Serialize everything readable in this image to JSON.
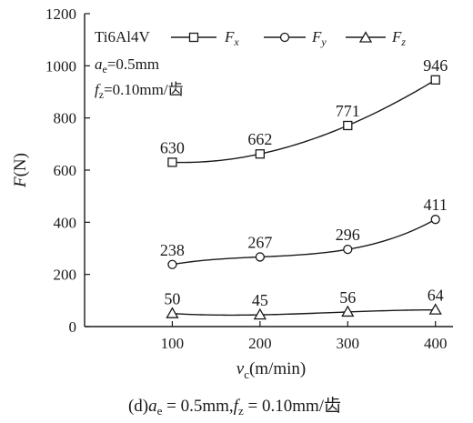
{
  "chart_data": {
    "type": "line",
    "x": [
      100,
      200,
      300,
      400
    ],
    "xlim": [
      0,
      420
    ],
    "ylim": [
      0,
      1200
    ],
    "xticks": [
      "100",
      "200",
      "300",
      "400"
    ],
    "yticks": [
      "0",
      "200",
      "400",
      "600",
      "800",
      "1000",
      "1200"
    ],
    "xlabel": {
      "main": "v",
      "sub": "c",
      "unit": "(m/min)"
    },
    "ylabel": {
      "main": "F",
      "unit": "(N)"
    },
    "grid": false,
    "legend_position": "top-right",
    "annotation": {
      "material": "Ti6Al4V",
      "ae_main": "a",
      "ae_sub": "e",
      "ae_value": "=0.5mm",
      "fz_main": "f",
      "fz_sub": "z",
      "fz_value": "=0.10mm/齿"
    },
    "series": [
      {
        "name": "F",
        "sub": "x",
        "marker": "square",
        "values": [
          630,
          662,
          771,
          946
        ],
        "labels": [
          "630",
          "662",
          "771",
          "946"
        ]
      },
      {
        "name": "F",
        "sub": "y",
        "marker": "circle",
        "values": [
          238,
          267,
          296,
          411
        ],
        "labels": [
          "238",
          "267",
          "296",
          "411"
        ]
      },
      {
        "name": "F",
        "sub": "z",
        "marker": "triangle",
        "values": [
          50,
          45,
          56,
          64
        ],
        "labels": [
          "50",
          "45",
          "56",
          "64"
        ]
      }
    ]
  },
  "caption": {
    "prefix": "(d)",
    "ae_main": "a",
    "ae_sub": "e",
    "ae_value": " = 0.5mm,",
    "fz_main": "f",
    "fz_sub": "z",
    "fz_value": " = 0.10mm/齿"
  }
}
